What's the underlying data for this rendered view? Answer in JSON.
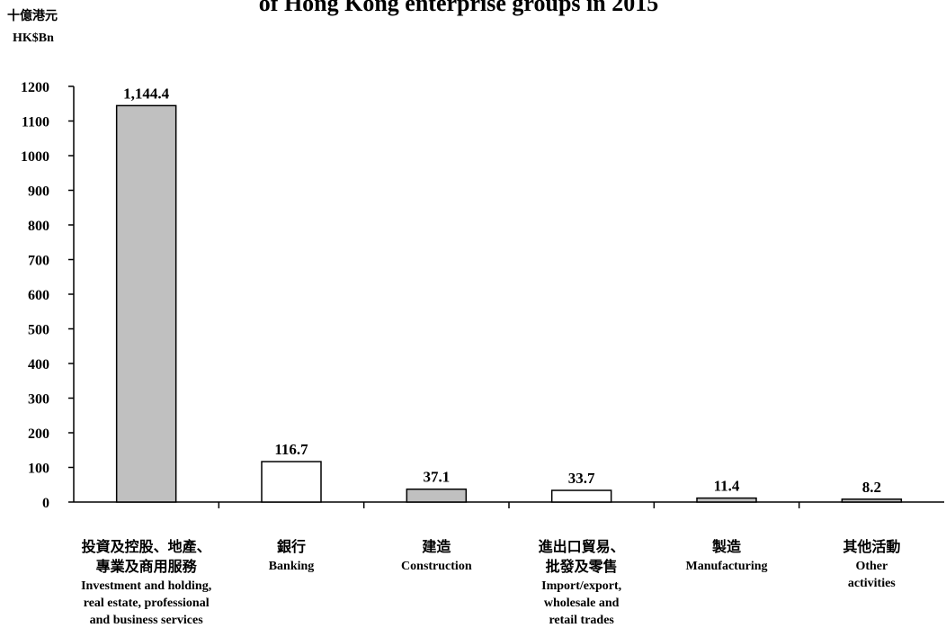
{
  "chart_data": {
    "type": "bar",
    "title": "of Hong Kong enterprise groups in 2015",
    "unit_zh": "十億港元",
    "unit_en": "HK$Bn",
    "ylim": [
      0,
      1200
    ],
    "yticks": [
      0,
      100,
      200,
      300,
      400,
      500,
      600,
      700,
      800,
      900,
      1000,
      1100,
      1200
    ],
    "grid": false,
    "categories": [
      {
        "zh": [
          "投資及控股、地產、",
          "專業及商用服務"
        ],
        "en": [
          "Investment and holding,",
          "real estate, professional",
          "and business services"
        ]
      },
      {
        "zh": [
          "銀行"
        ],
        "en": [
          "Banking"
        ]
      },
      {
        "zh": [
          "建造"
        ],
        "en": [
          "Construction"
        ]
      },
      {
        "zh": [
          "進出口貿易、",
          "批發及零售"
        ],
        "en": [
          "Import/export,",
          "wholesale and",
          "retail trades"
        ]
      },
      {
        "zh": [
          "製造"
        ],
        "en": [
          "Manufacturing"
        ]
      },
      {
        "zh": [
          "其他活動"
        ],
        "en": [
          "Other",
          "activities"
        ]
      }
    ],
    "values": [
      1144.4,
      116.7,
      37.1,
      33.7,
      11.4,
      8.2
    ],
    "data_labels": [
      "1,144.4",
      "116.7",
      "37.1",
      "33.7",
      "11.4",
      "8.2"
    ],
    "bar_colors": [
      "#c0c0c0",
      "#ffffff",
      "#c0c0c0",
      "#ffffff",
      "#c0c0c0",
      "#c0c0c0"
    ]
  }
}
